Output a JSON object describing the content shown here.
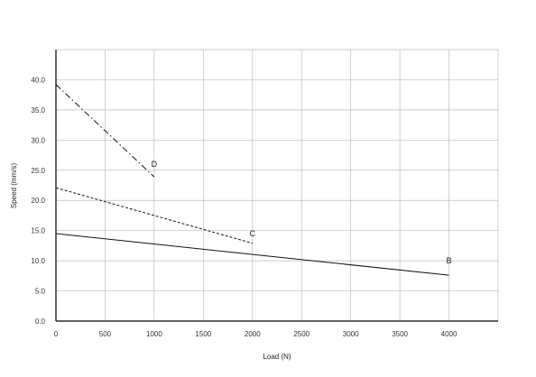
{
  "chart_data": {
    "type": "line",
    "title": "",
    "xlabel": "Load (N)",
    "ylabel": "Speed (mm/s)",
    "xlim": [
      0,
      4500
    ],
    "ylim": [
      0,
      45
    ],
    "x_ticks": [
      0,
      500,
      1000,
      1500,
      2000,
      2500,
      3000,
      3500,
      4000
    ],
    "x_tick_labels": [
      "0",
      "500",
      "1000",
      "1500",
      "2000",
      "2500",
      "3000",
      "3500",
      "4000"
    ],
    "y_ticks": [
      0,
      5,
      10,
      15,
      20,
      25,
      30,
      35,
      40
    ],
    "y_tick_labels": [
      "0.0",
      "5.0",
      "10.0",
      "15.0",
      "20.0",
      "25.0",
      "30.0",
      "35.0",
      "40.0"
    ],
    "grid": true,
    "legend": "none",
    "series": [
      {
        "name": "B",
        "style": "solid",
        "x": [
          0,
          4000
        ],
        "y": [
          14.5,
          7.6
        ]
      },
      {
        "name": "C",
        "style": "dashed",
        "x": [
          0,
          2000
        ],
        "y": [
          22.1,
          12.9
        ]
      },
      {
        "name": "D",
        "style": "dash-dot",
        "x": [
          0,
          1000
        ],
        "y": [
          39.2,
          23.9
        ]
      }
    ],
    "annotations": [
      {
        "text": "D",
        "x": 1000,
        "y": 26.0
      },
      {
        "text": "C",
        "x": 2000,
        "y": 14.5
      },
      {
        "text": "B",
        "x": 4000,
        "y": 10.0
      }
    ]
  }
}
